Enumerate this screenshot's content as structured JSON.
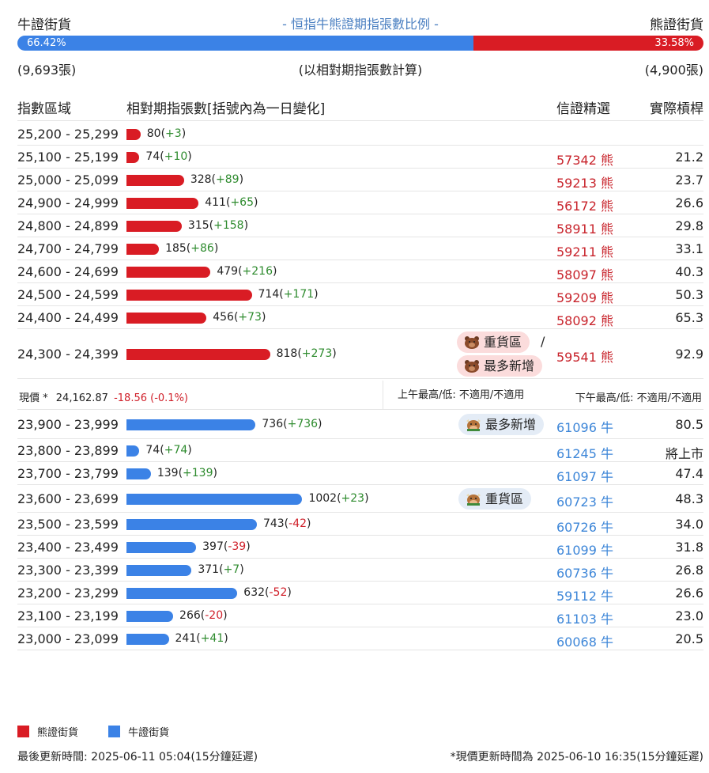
{
  "header": {
    "bull_label": "牛證街貨",
    "bear_label": "熊證街貨",
    "title": "- 恒指牛熊證期指張數比例 -",
    "bull_pct": "66.42%",
    "bear_pct": "33.58%",
    "bull_ratio": 0.6642,
    "bull_count": "(9,693張)",
    "bear_count": "(4,900張)",
    "note": "(以相對期指張數計算)"
  },
  "table_header": {
    "range": "指數區域",
    "contracts": "相對期指張數[括號內為一日變化]",
    "pick": "信證精選",
    "leverage": "實際槓桿"
  },
  "chart_data": {
    "type": "bar",
    "orientation": "horizontal",
    "bear_rows": [
      {
        "range": "25,200 - 25,299",
        "value": 80,
        "change": "+3",
        "code": "",
        "leverage": ""
      },
      {
        "range": "25,100 - 25,199",
        "value": 74,
        "change": "+10",
        "code": "57342 熊",
        "leverage": "21.2"
      },
      {
        "range": "25,000 - 25,099",
        "value": 328,
        "change": "+89",
        "code": "59213 熊",
        "leverage": "23.7"
      },
      {
        "range": "24,900 - 24,999",
        "value": 411,
        "change": "+65",
        "code": "56172 熊",
        "leverage": "26.6"
      },
      {
        "range": "24,800 - 24,899",
        "value": 315,
        "change": "+158",
        "code": "58911 熊",
        "leverage": "29.8"
      },
      {
        "range": "24,700 - 24,799",
        "value": 185,
        "change": "+86",
        "code": "59211 熊",
        "leverage": "33.1"
      },
      {
        "range": "24,600 - 24,699",
        "value": 479,
        "change": "+216",
        "code": "58097 熊",
        "leverage": "40.3"
      },
      {
        "range": "24,500 - 24,599",
        "value": 714,
        "change": "+171",
        "code": "59209 熊",
        "leverage": "50.3"
      },
      {
        "range": "24,400 - 24,499",
        "value": 456,
        "change": "+73",
        "code": "58092 熊",
        "leverage": "65.3"
      },
      {
        "range": "24,300 - 24,399",
        "value": 818,
        "change": "+273",
        "code": "59541 熊",
        "leverage": "92.9"
      }
    ],
    "bull_rows": [
      {
        "range": "23,900 - 23,999",
        "value": 736,
        "change": "+736",
        "code": "61096 牛",
        "leverage": "80.5"
      },
      {
        "range": "23,800 - 23,899",
        "value": 74,
        "change": "+74",
        "code": "61245 牛",
        "leverage": "將上市"
      },
      {
        "range": "23,700 - 23,799",
        "value": 139,
        "change": "+139",
        "code": "61097 牛",
        "leverage": "47.4"
      },
      {
        "range": "23,600 - 23,699",
        "value": 1002,
        "change": "+23",
        "code": "60723 牛",
        "leverage": "48.3"
      },
      {
        "range": "23,500 - 23,599",
        "value": 743,
        "change": "-42",
        "code": "60726 牛",
        "leverage": "34.0"
      },
      {
        "range": "23,400 - 23,499",
        "value": 397,
        "change": "-39",
        "code": "61099 牛",
        "leverage": "31.8"
      },
      {
        "range": "23,300 - 23,399",
        "value": 371,
        "change": "+7",
        "code": "60736 牛",
        "leverage": "26.8"
      },
      {
        "range": "23,200 - 23,299",
        "value": 632,
        "change": "-52",
        "code": "59112 牛",
        "leverage": "26.6"
      },
      {
        "range": "23,100 - 23,199",
        "value": 266,
        "change": "-20",
        "code": "61103 牛",
        "leverage": "23.0"
      },
      {
        "range": "23,000 - 23,099",
        "value": 241,
        "change": "+41",
        "code": "60068 牛",
        "leverage": "20.5"
      }
    ],
    "colors": {
      "bear": "#d91c24",
      "bull": "#3b82e6"
    }
  },
  "tags": {
    "heavy": "重貨區",
    "most_new": "最多新增",
    "slash": "/"
  },
  "price": {
    "label": "現價 *",
    "value": "24,162.87",
    "change": "-18.56 (-0.1%)",
    "am": "上午最高/低: 不適用/不適用",
    "pm": "下午最高/低: 不適用/不適用"
  },
  "legend": {
    "bear": "熊證街貨",
    "bull": "牛證街貨"
  },
  "footer": {
    "updated": "最後更新時間: 2025-06-11 05:04(15分鐘延遲)",
    "price_updated": "*現價更新時間為 2025-06-10 16:35(15分鐘延遲)"
  }
}
